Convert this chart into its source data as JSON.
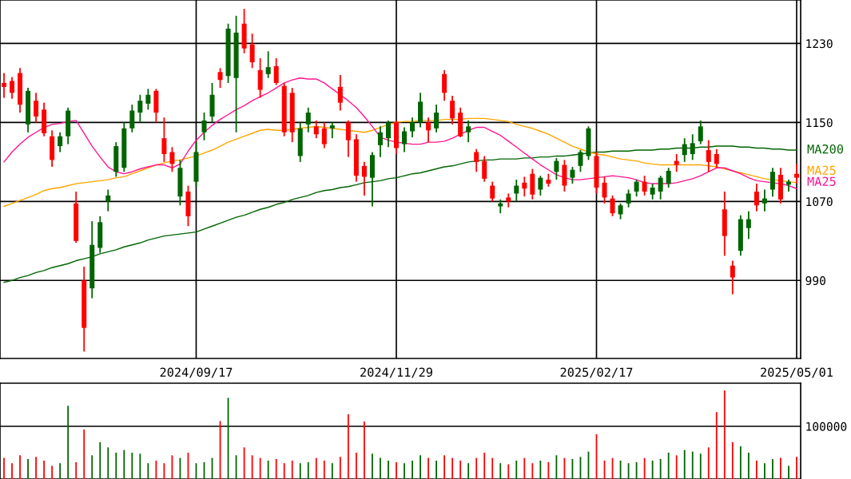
{
  "chart_data": [
    {
      "type": "candlestick",
      "categories": [
        null,
        null,
        null,
        null,
        null,
        null,
        null,
        null,
        null,
        null,
        null,
        null,
        null,
        null,
        null,
        null,
        null,
        null,
        null,
        null,
        null,
        null,
        null,
        null,
        "2024/09/17",
        null,
        null,
        null,
        null,
        null,
        null,
        null,
        null,
        null,
        null,
        null,
        null,
        null,
        null,
        null,
        null,
        null,
        null,
        null,
        null,
        null,
        null,
        null,
        null,
        "2024/11/29",
        null,
        null,
        null,
        null,
        null,
        null,
        null,
        null,
        null,
        null,
        null,
        null,
        null,
        null,
        null,
        null,
        null,
        null,
        null,
        null,
        null,
        null,
        null,
        null,
        "2025/02/17",
        null,
        null,
        null,
        null,
        null,
        null,
        null,
        null,
        null,
        null,
        null,
        null,
        null,
        null,
        null,
        null,
        null,
        null,
        null,
        null,
        null,
        null,
        null,
        null,
        "2025/05/01"
      ],
      "ohlc": [
        [
          1190,
          1200,
          1175,
          1186
        ],
        [
          1192,
          1196,
          1174,
          1180
        ],
        [
          1200,
          1205,
          1160,
          1168
        ],
        [
          1148,
          1185,
          1140,
          1182
        ],
        [
          1172,
          1180,
          1150,
          1156
        ],
        [
          1163,
          1170,
          1136,
          1139
        ],
        [
          1136,
          1142,
          1105,
          1112
        ],
        [
          1126,
          1140,
          1120,
          1136
        ],
        [
          1136,
          1165,
          1128,
          1162
        ],
        [
          1068,
          1080,
          1028,
          1030
        ],
        [
          990,
          1004,
          918,
          942
        ],
        [
          982,
          1050,
          972,
          1026
        ],
        [
          1023,
          1055,
          1018,
          1049
        ],
        [
          1070,
          1082,
          1060,
          1076
        ],
        [
          1100,
          1130,
          1095,
          1126
        ],
        [
          1104,
          1150,
          1100,
          1144
        ],
        [
          1144,
          1168,
          1140,
          1162
        ],
        [
          1160,
          1178,
          1150,
          1172
        ],
        [
          1169,
          1184,
          1163,
          1178
        ],
        [
          1182,
          1184,
          1150,
          1160
        ],
        [
          1134,
          1155,
          1110,
          1118
        ],
        [
          1120,
          1125,
          1100,
          1108
        ],
        [
          1075,
          1112,
          1066,
          1104
        ],
        [
          1080,
          1086,
          1045,
          1055
        ],
        [
          1090,
          1130,
          1085,
          1120
        ],
        [
          1140,
          1160,
          1132,
          1152
        ],
        [
          1156,
          1190,
          1150,
          1178
        ],
        [
          1201,
          1205,
          1185,
          1193
        ],
        [
          1197,
          1250,
          1190,
          1245
        ],
        [
          1195,
          1258,
          1140,
          1241
        ],
        [
          1250,
          1265,
          1220,
          1225
        ],
        [
          1229,
          1240,
          1205,
          1211
        ],
        [
          1203,
          1215,
          1175,
          1183
        ],
        [
          1199,
          1222,
          1195,
          1206
        ],
        [
          1207,
          1215,
          1188,
          1190
        ],
        [
          1187,
          1190,
          1136,
          1140
        ],
        [
          1180,
          1185,
          1130,
          1140
        ],
        [
          1116,
          1150,
          1110,
          1144
        ],
        [
          1148,
          1165,
          1140,
          1160
        ],
        [
          1146,
          1152,
          1134,
          1138
        ],
        [
          1144,
          1150,
          1124,
          1128
        ],
        [
          1144,
          1150,
          1134,
          1147
        ],
        [
          1186,
          1198,
          1162,
          1170
        ],
        [
          1150,
          1152,
          1115,
          1132
        ],
        [
          1133,
          1138,
          1090,
          1096
        ],
        [
          1106,
          1110,
          1076,
          1095
        ],
        [
          1094,
          1120,
          1065,
          1117
        ],
        [
          1127,
          1146,
          1115,
          1140
        ],
        [
          1134,
          1152,
          1125,
          1150
        ],
        [
          1150,
          1152,
          1118,
          1124
        ],
        [
          1128,
          1145,
          1120,
          1141
        ],
        [
          1141,
          1155,
          1135,
          1150
        ],
        [
          1150,
          1180,
          1145,
          1171
        ],
        [
          1150,
          1155,
          1130,
          1142
        ],
        [
          1144,
          1168,
          1140,
          1160
        ],
        [
          1199,
          1203,
          1172,
          1180
        ],
        [
          1172,
          1177,
          1148,
          1154
        ],
        [
          1160,
          1165,
          1135,
          1136
        ],
        [
          1140,
          1152,
          1130,
          1146
        ],
        [
          1120,
          1123,
          1100,
          1110
        ],
        [
          1111,
          1116,
          1090,
          1093
        ],
        [
          1086,
          1090,
          1070,
          1073
        ],
        [
          1065,
          1072,
          1058,
          1068
        ],
        [
          1074,
          1078,
          1064,
          1070
        ],
        [
          1078,
          1092,
          1070,
          1086
        ],
        [
          1089,
          1095,
          1075,
          1083
        ],
        [
          1098,
          1103,
          1072,
          1077
        ],
        [
          1082,
          1096,
          1076,
          1094
        ],
        [
          1092,
          1098,
          1085,
          1088
        ],
        [
          1100,
          1114,
          1092,
          1111
        ],
        [
          1107,
          1112,
          1080,
          1086
        ],
        [
          1094,
          1105,
          1088,
          1102
        ],
        [
          1106,
          1122,
          1100,
          1120
        ],
        [
          1116,
          1146,
          1112,
          1144
        ],
        [
          1116,
          1120,
          1078,
          1084
        ],
        [
          1089,
          1095,
          1068,
          1074
        ],
        [
          1073,
          1076,
          1055,
          1058
        ],
        [
          1057,
          1068,
          1052,
          1066
        ],
        [
          1068,
          1082,
          1064,
          1078
        ],
        [
          1080,
          1092,
          1075,
          1090
        ],
        [
          1090,
          1096,
          1076,
          1080
        ],
        [
          1077,
          1088,
          1072,
          1084
        ],
        [
          1080,
          1096,
          1072,
          1094
        ],
        [
          1088,
          1104,
          1084,
          1101
        ],
        [
          1111,
          1118,
          1100,
          1107
        ],
        [
          1117,
          1134,
          1110,
          1128
        ],
        [
          1118,
          1138,
          1112,
          1129
        ],
        [
          1131,
          1152,
          1128,
          1146
        ],
        [
          1122,
          1132,
          1100,
          1110
        ],
        [
          1118,
          1123,
          1104,
          1108
        ],
        [
          1062,
          1080,
          1015,
          1035
        ],
        [
          1005,
          1010,
          976,
          993
        ],
        [
          1020,
          1056,
          1015,
          1052
        ],
        [
          1043,
          1060,
          1032,
          1052
        ],
        [
          1080,
          1088,
          1060,
          1066
        ],
        [
          1068,
          1082,
          1060,
          1073
        ],
        [
          1082,
          1104,
          1075,
          1100
        ],
        [
          1097,
          1104,
          1068,
          1072
        ],
        [
          1087,
          1092,
          1080,
          1090
        ],
        [
          1098,
          1108,
          1088,
          1094
        ]
      ],
      "colors": [
        "#ff0000",
        "#ff0000",
        "#ff0000",
        "#006400",
        "#ff0000",
        "#ff0000",
        "#ff0000",
        "#006400",
        "#006400",
        "#ff0000",
        "#ff0000",
        "#006400",
        "#006400",
        "#006400",
        "#006400",
        "#006400",
        "#006400",
        "#006400",
        "#006400",
        "#ff0000",
        "#ff0000",
        "#ff0000",
        "#006400",
        "#ff0000",
        "#006400",
        "#006400",
        "#006400",
        "#ff0000",
        "#006400",
        "#006400",
        "#ff0000",
        "#ff0000",
        "#ff0000",
        "#006400",
        "#ff0000",
        "#ff0000",
        "#ff0000",
        "#006400",
        "#006400",
        "#ff0000",
        "#ff0000",
        "#006400",
        "#ff0000",
        "#ff0000",
        "#ff0000",
        "#ff0000",
        "#006400",
        "#006400",
        "#006400",
        "#ff0000",
        "#006400",
        "#006400",
        "#006400",
        "#ff0000",
        "#006400",
        "#ff0000",
        "#ff0000",
        "#ff0000",
        "#006400",
        "#ff0000",
        "#ff0000",
        "#ff0000",
        "#006400",
        "#ff0000",
        "#006400",
        "#ff0000",
        "#ff0000",
        "#006400",
        "#ff0000",
        "#006400",
        "#ff0000",
        "#006400",
        "#006400",
        "#006400",
        "#ff0000",
        "#ff0000",
        "#ff0000",
        "#006400",
        "#006400",
        "#006400",
        "#ff0000",
        "#006400",
        "#006400",
        "#006400",
        "#ff0000",
        "#006400",
        "#006400",
        "#006400",
        "#ff0000",
        "#ff0000",
        "#ff0000",
        "#ff0000",
        "#006400",
        "#006400",
        "#ff0000",
        "#006400",
        "#006400",
        "#ff0000",
        "#006400",
        "#ff0000"
      ],
      "series": [
        {
          "name": "MA200",
          "type": "line",
          "color": "#006400",
          "values": [
            988,
            990,
            993,
            995,
            998,
            1000,
            1003,
            1005,
            1007,
            1010,
            1012,
            1014,
            1017,
            1019,
            1021,
            1024,
            1026,
            1028,
            1031,
            1033,
            1035,
            1036,
            1037,
            1038,
            1039,
            1042,
            1045,
            1048,
            1051,
            1054,
            1056,
            1059,
            1062,
            1064,
            1067,
            1069,
            1072,
            1074,
            1076,
            1079,
            1081,
            1082,
            1084,
            1085,
            1087,
            1089,
            1090,
            1091,
            1093,
            1094,
            1096,
            1098,
            1099,
            1101,
            1103,
            1105,
            1106,
            1108,
            1110,
            1111,
            1112,
            1112,
            1113,
            1113,
            1113,
            1114,
            1114,
            1115,
            1115,
            1116,
            1116,
            1117,
            1118,
            1119,
            1120,
            1120,
            1121,
            1121,
            1121,
            1122,
            1122,
            1122,
            1123,
            1123,
            1124,
            1124,
            1124,
            1125,
            1125,
            1126,
            1126,
            1126,
            1125,
            1125,
            1124,
            1124,
            1123,
            1123,
            1122,
            1122
          ]
        },
        {
          "name": "MA25",
          "type": "line",
          "color": "#ffa500",
          "values": [
            1065,
            1068,
            1071,
            1074,
            1077,
            1081,
            1083,
            1084,
            1086,
            1088,
            1089,
            1090,
            1091,
            1092,
            1094,
            1095,
            1098,
            1101,
            1104,
            1107,
            1109,
            1111,
            1112,
            1114,
            1116,
            1119,
            1122,
            1126,
            1130,
            1133,
            1136,
            1139,
            1142,
            1143,
            1142,
            1142,
            1143,
            1144,
            1145,
            1146,
            1145,
            1144,
            1143,
            1142,
            1141,
            1140,
            1142,
            1145,
            1148,
            1150,
            1151,
            1151,
            1152,
            1152,
            1152,
            1153,
            1153,
            1153,
            1154,
            1154,
            1154,
            1153,
            1152,
            1151,
            1148,
            1146,
            1144,
            1141,
            1138,
            1134,
            1130,
            1126,
            1123,
            1120,
            1118,
            1117,
            1115,
            1113,
            1112,
            1111,
            1109,
            1108,
            1107,
            1107,
            1107,
            1107,
            1107,
            1107,
            1106,
            1105,
            1103,
            1101,
            1099,
            1097,
            1095,
            1093,
            1092,
            1091,
            1090,
            1089
          ]
        },
        {
          "name": "MA25",
          "type": "line",
          "color": "#ff1493",
          "values": [
            1110,
            1120,
            1128,
            1135,
            1140,
            1145,
            1148,
            1149,
            1151,
            1152,
            1139,
            1126,
            1115,
            1105,
            1100,
            1098,
            1100,
            1103,
            1105,
            1107,
            1107,
            1104,
            1108,
            1121,
            1132,
            1140,
            1147,
            1153,
            1158,
            1163,
            1167,
            1172,
            1176,
            1180,
            1185,
            1190,
            1193,
            1195,
            1194,
            1194,
            1190,
            1184,
            1178,
            1172,
            1165,
            1156,
            1146,
            1135,
            1132,
            1130,
            1129,
            1128,
            1128,
            1130,
            1130,
            1131,
            1134,
            1138,
            1142,
            1145,
            1145,
            1141,
            1137,
            1131,
            1125,
            1119,
            1113,
            1107,
            1102,
            1097,
            1094,
            1092,
            1092,
            1093,
            1094,
            1095,
            1096,
            1095,
            1094,
            1092,
            1089,
            1088,
            1088,
            1088,
            1089,
            1091,
            1093,
            1096,
            1100,
            1104,
            1104,
            1101,
            1098,
            1094,
            1091,
            1090,
            1089,
            1088,
            1086,
            1083
          ]
        }
      ],
      "ylim": [
        911,
        1274
      ],
      "yticks": [
        990,
        1070,
        1150,
        1230
      ],
      "grid": true
    },
    {
      "type": "bar",
      "tick_labels": "y",
      "ylim": [
        0,
        181800
      ],
      "yticks": [
        100000
      ],
      "grid": "y",
      "categories": [
        null,
        null,
        null,
        null,
        null,
        null,
        null,
        null,
        null,
        null,
        null,
        null,
        null,
        null,
        null,
        null,
        null,
        null,
        null,
        null,
        null,
        null,
        null,
        null,
        "2024/09/17",
        null,
        null,
        null,
        null,
        null,
        null,
        null,
        null,
        null,
        null,
        null,
        null,
        null,
        null,
        null,
        null,
        null,
        null,
        null,
        null,
        null,
        null,
        null,
        null,
        "2024/11/29",
        null,
        null,
        null,
        null,
        null,
        null,
        null,
        null,
        null,
        null,
        null,
        null,
        null,
        null,
        null,
        null,
        null,
        null,
        null,
        null,
        null,
        null,
        null,
        null,
        "2025/02/17",
        null,
        null,
        null,
        null,
        null,
        null,
        null,
        null,
        null,
        null,
        null,
        null,
        null,
        null,
        null,
        null,
        null,
        null,
        null,
        null,
        null,
        null,
        null,
        null,
        "2025/05/01"
      ],
      "values": [
        40000,
        30000,
        45000,
        38000,
        42000,
        35000,
        25000,
        30000,
        139000,
        32000,
        94000,
        45000,
        70000,
        60000,
        50000,
        55000,
        50000,
        48000,
        30000,
        35000,
        30000,
        45000,
        40000,
        50000,
        30000,
        32000,
        40000,
        110000,
        154000,
        45000,
        60000,
        45000,
        40000,
        35000,
        38000,
        30000,
        35000,
        30000,
        32000,
        40000,
        35000,
        30000,
        42000,
        123000,
        50000,
        109000,
        48000,
        40000,
        35000,
        32000,
        30000,
        35000,
        45000,
        40000,
        35000,
        45000,
        40000,
        35000,
        30000,
        40000,
        50000,
        40000,
        30000,
        28000,
        35000,
        40000,
        30000,
        35000,
        32000,
        45000,
        40000,
        38000,
        42000,
        52000,
        85000,
        35000,
        40000,
        35000,
        30000,
        32000,
        40000,
        35000,
        38000,
        50000,
        45000,
        55000,
        52000,
        48000,
        60000,
        127000,
        168000,
        70000,
        62000,
        50000,
        35000,
        30000,
        38000,
        40000,
        25000,
        42000
      ],
      "colors": [
        "#ff0000",
        "#ff0000",
        "#ff0000",
        "#006400",
        "#ff0000",
        "#ff0000",
        "#ff0000",
        "#006400",
        "#006400",
        "#ff0000",
        "#ff0000",
        "#006400",
        "#006400",
        "#006400",
        "#006400",
        "#006400",
        "#006400",
        "#006400",
        "#006400",
        "#ff0000",
        "#ff0000",
        "#ff0000",
        "#006400",
        "#ff0000",
        "#006400",
        "#006400",
        "#006400",
        "#ff0000",
        "#006400",
        "#006400",
        "#ff0000",
        "#ff0000",
        "#ff0000",
        "#006400",
        "#ff0000",
        "#ff0000",
        "#ff0000",
        "#006400",
        "#006400",
        "#ff0000",
        "#ff0000",
        "#006400",
        "#ff0000",
        "#ff0000",
        "#ff0000",
        "#ff0000",
        "#006400",
        "#006400",
        "#006400",
        "#ff0000",
        "#006400",
        "#006400",
        "#006400",
        "#ff0000",
        "#006400",
        "#ff0000",
        "#ff0000",
        "#ff0000",
        "#006400",
        "#ff0000",
        "#ff0000",
        "#ff0000",
        "#006400",
        "#ff0000",
        "#006400",
        "#ff0000",
        "#ff0000",
        "#006400",
        "#ff0000",
        "#006400",
        "#ff0000",
        "#006400",
        "#006400",
        "#006400",
        "#ff0000",
        "#ff0000",
        "#ff0000",
        "#006400",
        "#006400",
        "#006400",
        "#ff0000",
        "#006400",
        "#006400",
        "#006400",
        "#ff0000",
        "#006400",
        "#006400",
        "#006400",
        "#ff0000",
        "#ff0000",
        "#ff0000",
        "#ff0000",
        "#006400",
        "#006400",
        "#ff0000",
        "#006400",
        "#006400",
        "#ff0000",
        "#006400",
        "#ff0000"
      ]
    }
  ]
}
